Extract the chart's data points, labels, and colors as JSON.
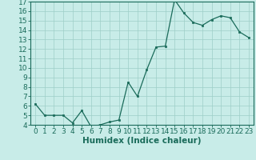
{
  "x": [
    0,
    1,
    2,
    3,
    4,
    5,
    6,
    7,
    8,
    9,
    10,
    11,
    12,
    13,
    14,
    15,
    16,
    17,
    18,
    19,
    20,
    21,
    22,
    23
  ],
  "y": [
    6.2,
    5.0,
    5.0,
    5.0,
    4.2,
    5.5,
    3.8,
    4.0,
    4.3,
    4.5,
    8.5,
    7.0,
    9.8,
    12.2,
    12.3,
    17.2,
    15.8,
    14.8,
    14.5,
    15.1,
    15.5,
    15.3,
    13.8,
    13.2
  ],
  "title": "",
  "xlabel": "Humidex (Indice chaleur)",
  "ylabel": "",
  "xlim": [
    -0.5,
    23.5
  ],
  "ylim": [
    4,
    17
  ],
  "yticks": [
    4,
    5,
    6,
    7,
    8,
    9,
    10,
    11,
    12,
    13,
    14,
    15,
    16,
    17
  ],
  "xticks": [
    0,
    1,
    2,
    3,
    4,
    5,
    6,
    7,
    8,
    9,
    10,
    11,
    12,
    13,
    14,
    15,
    16,
    17,
    18,
    19,
    20,
    21,
    22,
    23
  ],
  "line_color": "#1a6b5a",
  "marker_color": "#1a6b5a",
  "bg_color": "#c8ece8",
  "grid_color": "#9ecfc8",
  "label_fontsize": 7.5,
  "tick_fontsize": 6.5
}
